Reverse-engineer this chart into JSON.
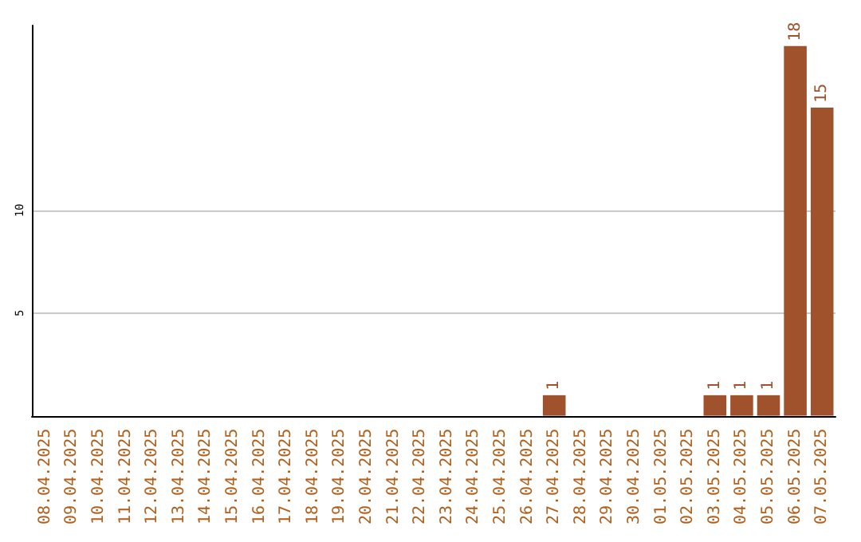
{
  "chart_data": {
    "type": "bar",
    "categories": [
      "08.04.2025",
      "09.04.2025",
      "10.04.2025",
      "11.04.2025",
      "12.04.2025",
      "13.04.2025",
      "14.04.2025",
      "15.04.2025",
      "16.04.2025",
      "17.04.2025",
      "18.04.2025",
      "19.04.2025",
      "20.04.2025",
      "21.04.2025",
      "22.04.2025",
      "23.04.2025",
      "24.04.2025",
      "25.04.2025",
      "26.04.2025",
      "27.04.2025",
      "28.04.2025",
      "29.04.2025",
      "30.04.2025",
      "01.05.2025",
      "02.05.2025",
      "03.05.2025",
      "04.05.2025",
      "05.05.2025",
      "06.05.2025",
      "07.05.2025"
    ],
    "values": [
      0,
      0,
      0,
      0,
      0,
      0,
      0,
      0,
      0,
      0,
      0,
      0,
      0,
      0,
      0,
      0,
      0,
      0,
      0,
      1,
      0,
      0,
      0,
      0,
      0,
      1,
      1,
      1,
      18,
      15
    ],
    "value_labels": [
      null,
      null,
      null,
      null,
      null,
      null,
      null,
      null,
      null,
      null,
      null,
      null,
      null,
      null,
      null,
      null,
      null,
      null,
      null,
      "1",
      null,
      null,
      null,
      null,
      null,
      "1",
      "1",
      "1",
      "18",
      "15"
    ],
    "color": "#a0522d",
    "ylim": [
      0,
      19
    ],
    "yticks": [
      5,
      10
    ],
    "grid": "y"
  }
}
